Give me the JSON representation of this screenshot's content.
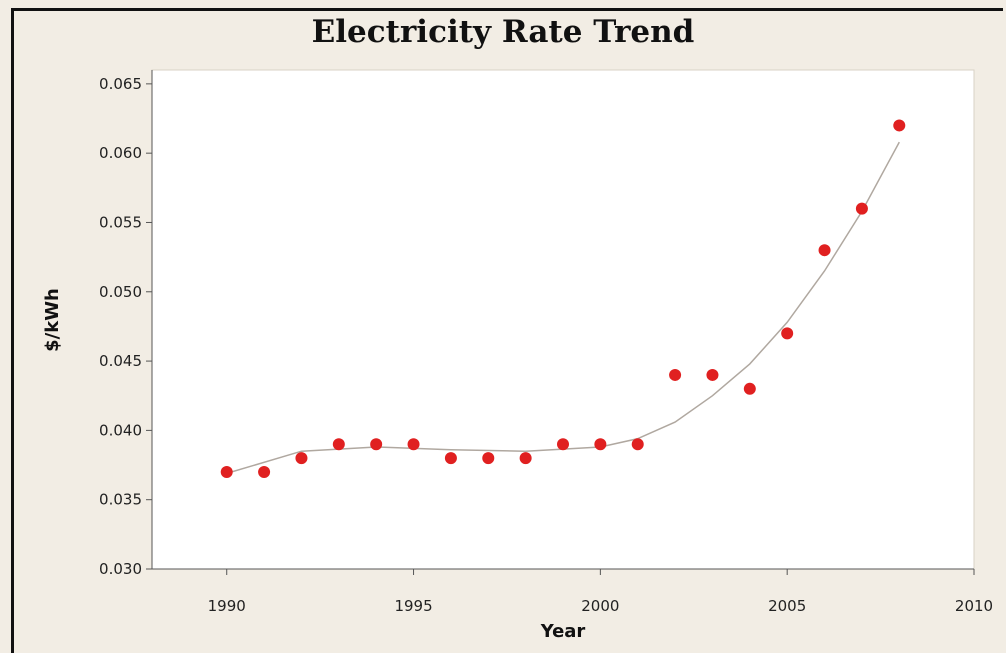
{
  "chart_data": {
    "type": "scatter",
    "title": "Electricity Rate Trend",
    "xlabel": "Year",
    "ylabel": "$/kWh",
    "xlim": [
      1988,
      2010
    ],
    "ylim": [
      0.03,
      0.066
    ],
    "x_ticks": [
      "1990",
      "1995",
      "2000",
      "2005",
      "2010"
    ],
    "y_ticks": [
      "0.030",
      "0.035",
      "0.040",
      "0.045",
      "0.050",
      "0.055",
      "0.060",
      "0.065"
    ],
    "grid": false,
    "legend": "none",
    "series": [
      {
        "x": [
          1990,
          1991,
          1992,
          1993,
          1994,
          1995,
          1996,
          1997,
          1998,
          1999,
          2000,
          2001,
          2002,
          2003,
          2004,
          2005,
          2006,
          2007,
          2008
        ],
        "y": [
          0.037,
          0.037,
          0.038,
          0.039,
          0.039,
          0.039,
          0.038,
          0.038,
          0.038,
          0.039,
          0.039,
          0.039,
          0.044,
          0.044,
          0.043,
          0.047,
          0.053,
          0.056,
          0.062
        ]
      }
    ],
    "trendline": {
      "x": [
        1990,
        1992,
        1994,
        1996,
        1998,
        2000,
        2001,
        2002,
        2003,
        2004,
        2005,
        2006,
        2007,
        2008
      ],
      "y": [
        0.0369,
        0.0385,
        0.0388,
        0.0386,
        0.0385,
        0.0388,
        0.0394,
        0.0406,
        0.0425,
        0.0448,
        0.0478,
        0.0515,
        0.0558,
        0.0608
      ]
    },
    "colors": {
      "point": "#e02020",
      "trendline": "#b0a8a0",
      "plot_background": "#ffffff",
      "page_background": "#f2ede4"
    }
  }
}
